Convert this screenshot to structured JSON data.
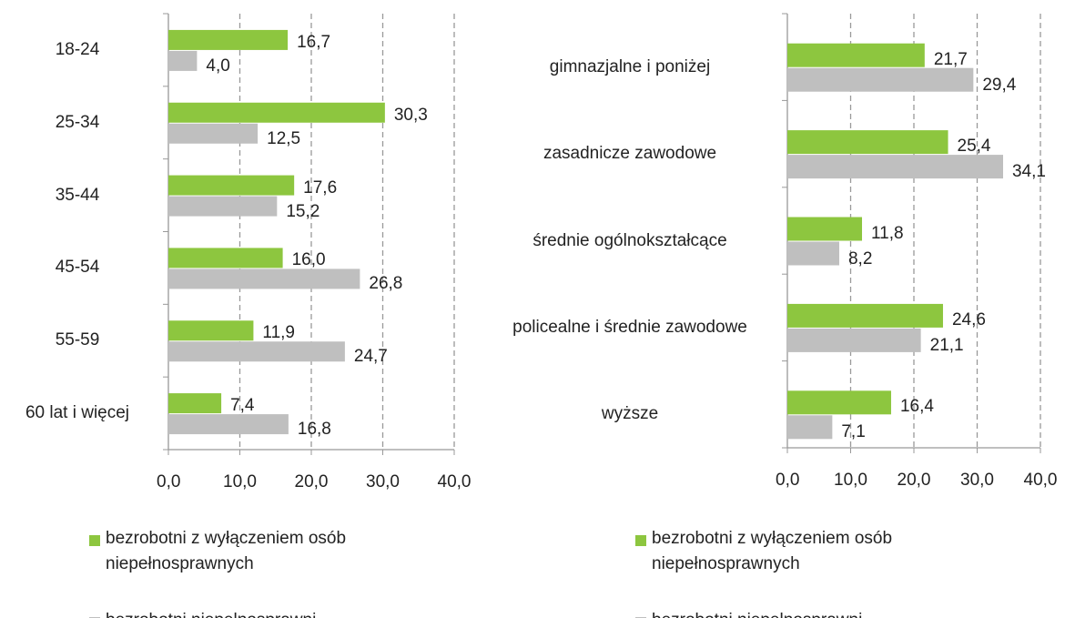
{
  "chart_data": [
    {
      "type": "bar",
      "orientation": "horizontal",
      "categories": [
        "18-24",
        "25-34",
        "35-44",
        "45-54",
        "55-59",
        "60 lat i więcej"
      ],
      "series": [
        {
          "name": "bezrobotni z wyłączeniem osób niepełnosprawnych",
          "color": "#8dc63f",
          "values": [
            16.7,
            30.3,
            17.6,
            16.0,
            11.9,
            7.4
          ],
          "value_labels": [
            "16,7",
            "30,3",
            "17,6",
            "16,0",
            "11,9",
            "7,4"
          ]
        },
        {
          "name": "bezrobotni niepełnosprawni",
          "color": "#bfbfbf",
          "values": [
            4.0,
            12.5,
            15.2,
            26.8,
            24.7,
            16.8
          ],
          "value_labels": [
            "4,0",
            "12,5",
            "15,2",
            "26,8",
            "24,7",
            "16,8"
          ]
        }
      ],
      "xlim": [
        0,
        40
      ],
      "xticks": [
        {
          "value": 0,
          "label": "0,0"
        },
        {
          "value": 10,
          "label": "10,0"
        },
        {
          "value": 20,
          "label": "20,0"
        },
        {
          "value": 30,
          "label": "30,0"
        },
        {
          "value": 40,
          "label": "40,0"
        }
      ],
      "grid": true,
      "legend": "bottom"
    },
    {
      "type": "bar",
      "orientation": "horizontal",
      "categories": [
        "gimnazjalne i poniżej",
        "zasadnicze zawodowe",
        "średnie ogólnokształcące",
        "policealne i średnie zawodowe",
        "wyższe"
      ],
      "series": [
        {
          "name": "bezrobotni z wyłączeniem osób niepełnosprawnych",
          "color": "#8dc63f",
          "values": [
            21.7,
            25.4,
            11.8,
            24.6,
            16.4
          ],
          "value_labels": [
            "21,7",
            "25,4",
            "11,8",
            "24,6",
            "16,4"
          ]
        },
        {
          "name": "bezrobotni niepełnosprawni",
          "color": "#bfbfbf",
          "values": [
            29.4,
            34.1,
            8.2,
            21.1,
            7.1
          ],
          "value_labels": [
            "29,4",
            "34,1",
            "8,2",
            "21,1",
            "7,1"
          ]
        }
      ],
      "xlim": [
        0,
        40
      ],
      "xticks": [
        {
          "value": 0,
          "label": "0,0"
        },
        {
          "value": 10,
          "label": "10,0"
        },
        {
          "value": 20,
          "label": "20,0"
        },
        {
          "value": 30,
          "label": "30,0"
        },
        {
          "value": 40,
          "label": "40,0"
        }
      ],
      "grid": true,
      "legend": "bottom"
    }
  ]
}
